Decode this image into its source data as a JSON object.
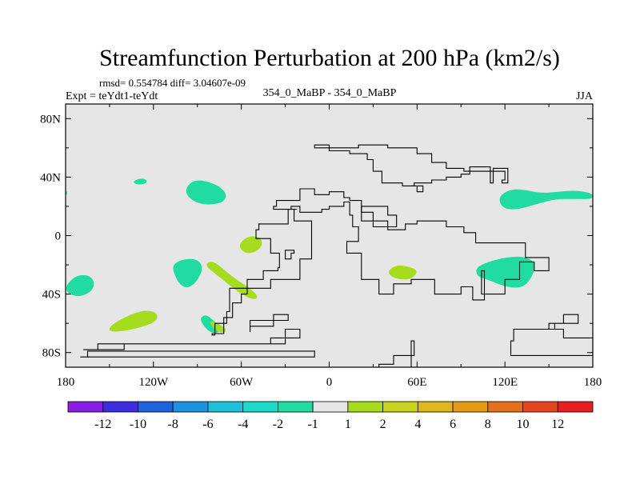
{
  "chart_data": {
    "type": "heatmap",
    "title": "Streamfunction Perturbation at 200 hPa (km2/s)",
    "stats_text": "rmsd= 0.554784 diff= 3.04607e-09",
    "expt_text": "Expt = teYdt1-teYdt",
    "case_text": "354_0_MaBP - 354_0_MaBP",
    "season_text": "JJA",
    "xlim": [
      -180,
      180
    ],
    "ylim": [
      -90,
      90
    ],
    "x_ticks": [
      {
        "value": -180,
        "label": "180"
      },
      {
        "value": -120,
        "label": "120W"
      },
      {
        "value": -60,
        "label": "60W"
      },
      {
        "value": 0,
        "label": "0"
      },
      {
        "value": 60,
        "label": "60E"
      },
      {
        "value": 120,
        "label": "120E"
      },
      {
        "value": 180,
        "label": "180"
      }
    ],
    "y_ticks": [
      {
        "value": 80,
        "label": "80N"
      },
      {
        "value": 40,
        "label": "40N"
      },
      {
        "value": 0,
        "label": "0"
      },
      {
        "value": -40,
        "label": "40S"
      },
      {
        "value": -80,
        "label": "80S"
      }
    ],
    "colorbar": {
      "colors": [
        "#8a1ee6",
        "#3c2ee0",
        "#1e64e0",
        "#1a94e0",
        "#1ec0dc",
        "#1ed8c8",
        "#20dca0",
        "#e6e6e6",
        "#a6dc1e",
        "#c8d21e",
        "#dcb81e",
        "#e69a14",
        "#e6701a",
        "#e6461e",
        "#e61e1e"
      ],
      "labels": [
        "-12",
        "-10",
        "-8",
        "-6",
        "-4",
        "-2",
        "-1",
        "1",
        "2",
        "4",
        "6",
        "8",
        "10",
        "12"
      ]
    },
    "colors": {
      "background_field": "#e6e6e6",
      "negative_fill": "#20dca0",
      "positive_fill": "#a6dc1e"
    },
    "features": [
      {
        "name": "neg-north-pacific",
        "level": -1,
        "polygon": [
          [
            -98,
            32
          ],
          [
            -94,
            37
          ],
          [
            -88,
            38
          ],
          [
            -80,
            36
          ],
          [
            -74,
            33
          ],
          [
            -70,
            28
          ],
          [
            -72,
            23
          ],
          [
            -80,
            21
          ],
          [
            -90,
            22
          ],
          [
            -97,
            27
          ]
        ]
      },
      {
        "name": "neg-small-pacific",
        "level": -1,
        "polygon": [
          [
            -134,
            37
          ],
          [
            -130,
            39
          ],
          [
            -126,
            39
          ],
          [
            -124,
            37
          ],
          [
            -127,
            35
          ],
          [
            -132,
            35
          ]
        ]
      },
      {
        "name": "neg-west-edge",
        "level": -1,
        "polygon": [
          [
            -180,
            29
          ],
          [
            -179,
            31
          ],
          [
            -179,
            27
          ]
        ]
      },
      {
        "name": "neg-south-pacific",
        "level": -1,
        "polygon": [
          [
            -178,
            -32
          ],
          [
            -172,
            -27
          ],
          [
            -164,
            -27
          ],
          [
            -160,
            -32
          ],
          [
            -162,
            -38
          ],
          [
            -170,
            -42
          ],
          [
            -178,
            -40
          ],
          [
            -180,
            -36
          ]
        ]
      },
      {
        "name": "neg-south-america-tip",
        "level": -1,
        "polygon": [
          [
            -88,
            -56
          ],
          [
            -84,
            -54
          ],
          [
            -79,
            -58
          ],
          [
            -74,
            -63
          ],
          [
            -76,
            -67
          ],
          [
            -82,
            -66
          ],
          [
            -87,
            -60
          ]
        ]
      },
      {
        "name": "neg-west-pacific-s",
        "level": -1,
        "polygon": [
          [
            -107,
            -20
          ],
          [
            -100,
            -16
          ],
          [
            -90,
            -16
          ],
          [
            -86,
            -22
          ],
          [
            -90,
            -31
          ],
          [
            -96,
            -36
          ],
          [
            -102,
            -34
          ],
          [
            -106,
            -26
          ]
        ]
      },
      {
        "name": "neg-north-pacific-e",
        "level": -1,
        "polygon": [
          [
            117,
            28
          ],
          [
            125,
            32
          ],
          [
            135,
            31
          ],
          [
            145,
            29
          ],
          [
            157,
            30
          ],
          [
            168,
            31
          ],
          [
            180,
            29
          ],
          [
            180,
            25
          ],
          [
            168,
            25
          ],
          [
            155,
            25
          ],
          [
            143,
            22
          ],
          [
            130,
            18
          ],
          [
            120,
            18
          ],
          [
            116,
            23
          ]
        ]
      },
      {
        "name": "neg-australia",
        "level": -1,
        "polygon": [
          [
            100,
            -22
          ],
          [
            108,
            -18
          ],
          [
            120,
            -15
          ],
          [
            132,
            -14
          ],
          [
            141,
            -18
          ],
          [
            139,
            -28
          ],
          [
            132,
            -36
          ],
          [
            120,
            -35
          ],
          [
            108,
            -30
          ],
          [
            101,
            -28
          ]
        ]
      },
      {
        "name": "pos-central-pacific",
        "level": 1,
        "polygon": [
          [
            -62,
            -7
          ],
          [
            -58,
            -2
          ],
          [
            -52,
            0
          ],
          [
            -46,
            -2
          ],
          [
            -46,
            -8
          ],
          [
            -52,
            -12
          ],
          [
            -58,
            -12
          ]
        ]
      },
      {
        "name": "pos-se-pacific",
        "level": 1,
        "polygon": [
          [
            -83,
            -18
          ],
          [
            -78,
            -18
          ],
          [
            -70,
            -25
          ],
          [
            -62,
            -31
          ],
          [
            -54,
            -36
          ],
          [
            -48,
            -42
          ],
          [
            -52,
            -44
          ],
          [
            -60,
            -40
          ],
          [
            -68,
            -34
          ],
          [
            -78,
            -26
          ],
          [
            -84,
            -21
          ]
        ]
      },
      {
        "name": "pos-south-pacific",
        "level": 1,
        "polygon": [
          [
            -150,
            -62
          ],
          [
            -140,
            -56
          ],
          [
            -128,
            -51
          ],
          [
            -118,
            -52
          ],
          [
            -117,
            -58
          ],
          [
            -126,
            -62
          ],
          [
            -138,
            -65
          ],
          [
            -150,
            -66
          ]
        ]
      },
      {
        "name": "pos-south-america",
        "level": 1,
        "polygon": [
          [
            -82,
            -58
          ],
          [
            -76,
            -60
          ],
          [
            -70,
            -64
          ],
          [
            -72,
            -67
          ],
          [
            -79,
            -64
          ]
        ]
      },
      {
        "name": "pos-south-africa",
        "level": 1,
        "polygon": [
          [
            40,
            -24
          ],
          [
            46,
            -20
          ],
          [
            54,
            -21
          ],
          [
            61,
            -24
          ],
          [
            56,
            -30
          ],
          [
            48,
            -30
          ],
          [
            42,
            -28
          ]
        ]
      }
    ],
    "coastlines": [
      [
        [
          -165,
          -79
        ],
        [
          -10,
          -79
        ],
        [
          -10,
          -83
        ],
        [
          -170,
          -83
        ]
      ],
      [
        [
          -158,
          -74
        ],
        [
          -70,
          -74
        ],
        [
          -40,
          -70
        ],
        [
          -20,
          -64
        ],
        [
          -30,
          -74
        ],
        [
          -140,
          -78
        ],
        [
          -168,
          -78
        ]
      ],
      [
        [
          -54,
          -62
        ],
        [
          -38,
          -54
        ],
        [
          -30,
          -54
        ],
        [
          -28,
          -58
        ],
        [
          -54,
          -66
        ]
      ],
      [
        [
          -80,
          -67
        ],
        [
          -72,
          -56
        ],
        [
          -66,
          -46
        ],
        [
          -60,
          -40
        ],
        [
          -56,
          -30
        ],
        [
          -45,
          -24
        ],
        [
          -35,
          -22
        ],
        [
          -34,
          -12
        ],
        [
          -40,
          -2
        ],
        [
          -50,
          4
        ],
        [
          -48,
          8
        ],
        [
          -28,
          18
        ],
        [
          -22,
          18
        ],
        [
          -24,
          10
        ],
        [
          -12,
          -16
        ],
        [
          -20,
          -30
        ],
        [
          -40,
          -36
        ],
        [
          -68,
          -52
        ],
        [
          -70,
          -60
        ],
        [
          -78,
          -68
        ]
      ],
      [
        [
          -38,
          18
        ],
        [
          -26,
          20
        ],
        [
          -20,
          16
        ],
        [
          -5,
          18
        ],
        [
          0,
          20
        ],
        [
          10,
          23
        ],
        [
          14,
          14
        ],
        [
          16,
          6
        ],
        [
          20,
          -4
        ],
        [
          12,
          -12
        ],
        [
          22,
          -30
        ],
        [
          34,
          -40
        ],
        [
          44,
          -33
        ],
        [
          56,
          -30
        ],
        [
          72,
          -40
        ],
        [
          90,
          -35
        ],
        [
          98,
          -44
        ],
        [
          106,
          -24
        ],
        [
          104,
          -40
        ],
        [
          120,
          -30
        ],
        [
          130,
          -18
        ],
        [
          140,
          -24
        ],
        [
          150,
          -15
        ],
        [
          134,
          -5
        ],
        [
          110,
          -5
        ],
        [
          100,
          2
        ],
        [
          92,
          6
        ],
        [
          80,
          10
        ],
        [
          60,
          8
        ],
        [
          52,
          4
        ],
        [
          40,
          10
        ],
        [
          30,
          16
        ],
        [
          22,
          24
        ],
        [
          14,
          26
        ],
        [
          10,
          30
        ],
        [
          0,
          28
        ],
        [
          -10,
          32
        ],
        [
          -20,
          24
        ],
        [
          -30,
          24
        ],
        [
          -36,
          20
        ]
      ],
      [
        [
          -10,
          60
        ],
        [
          0,
          58
        ],
        [
          14,
          56
        ],
        [
          26,
          52
        ],
        [
          30,
          44
        ],
        [
          36,
          36
        ],
        [
          50,
          34
        ],
        [
          58,
          36
        ],
        [
          70,
          38
        ],
        [
          80,
          40
        ],
        [
          90,
          42
        ],
        [
          96,
          47
        ],
        [
          110,
          36
        ],
        [
          112,
          46
        ],
        [
          122,
          36
        ],
        [
          118,
          38
        ],
        [
          120,
          44
        ],
        [
          92,
          46
        ],
        [
          80,
          50
        ],
        [
          70,
          56
        ],
        [
          60,
          60
        ],
        [
          40,
          62
        ],
        [
          20,
          60
        ],
        [
          0,
          62
        ]
      ],
      [
        [
          34,
          -90
        ],
        [
          56,
          -72
        ],
        [
          58,
          -82
        ],
        [
          44,
          -88
        ]
      ],
      [
        [
          126,
          -64
        ],
        [
          144,
          -64
        ],
        [
          160,
          -70
        ],
        [
          180,
          -74
        ],
        [
          180,
          -82
        ],
        [
          130,
          -82
        ],
        [
          124,
          -72
        ]
      ],
      [
        [
          150,
          -60
        ],
        [
          160,
          -54
        ],
        [
          170,
          -60
        ],
        [
          154,
          -64
        ]
      ],
      [
        [
          22,
          20
        ],
        [
          40,
          14
        ],
        [
          46,
          6
        ],
        [
          30,
          10
        ]
      ],
      [
        [
          -30,
          -10
        ],
        [
          -24,
          -12
        ],
        [
          -26,
          -16
        ]
      ],
      [
        [
          56,
          34
        ],
        [
          60,
          30
        ],
        [
          64,
          34
        ]
      ]
    ]
  }
}
